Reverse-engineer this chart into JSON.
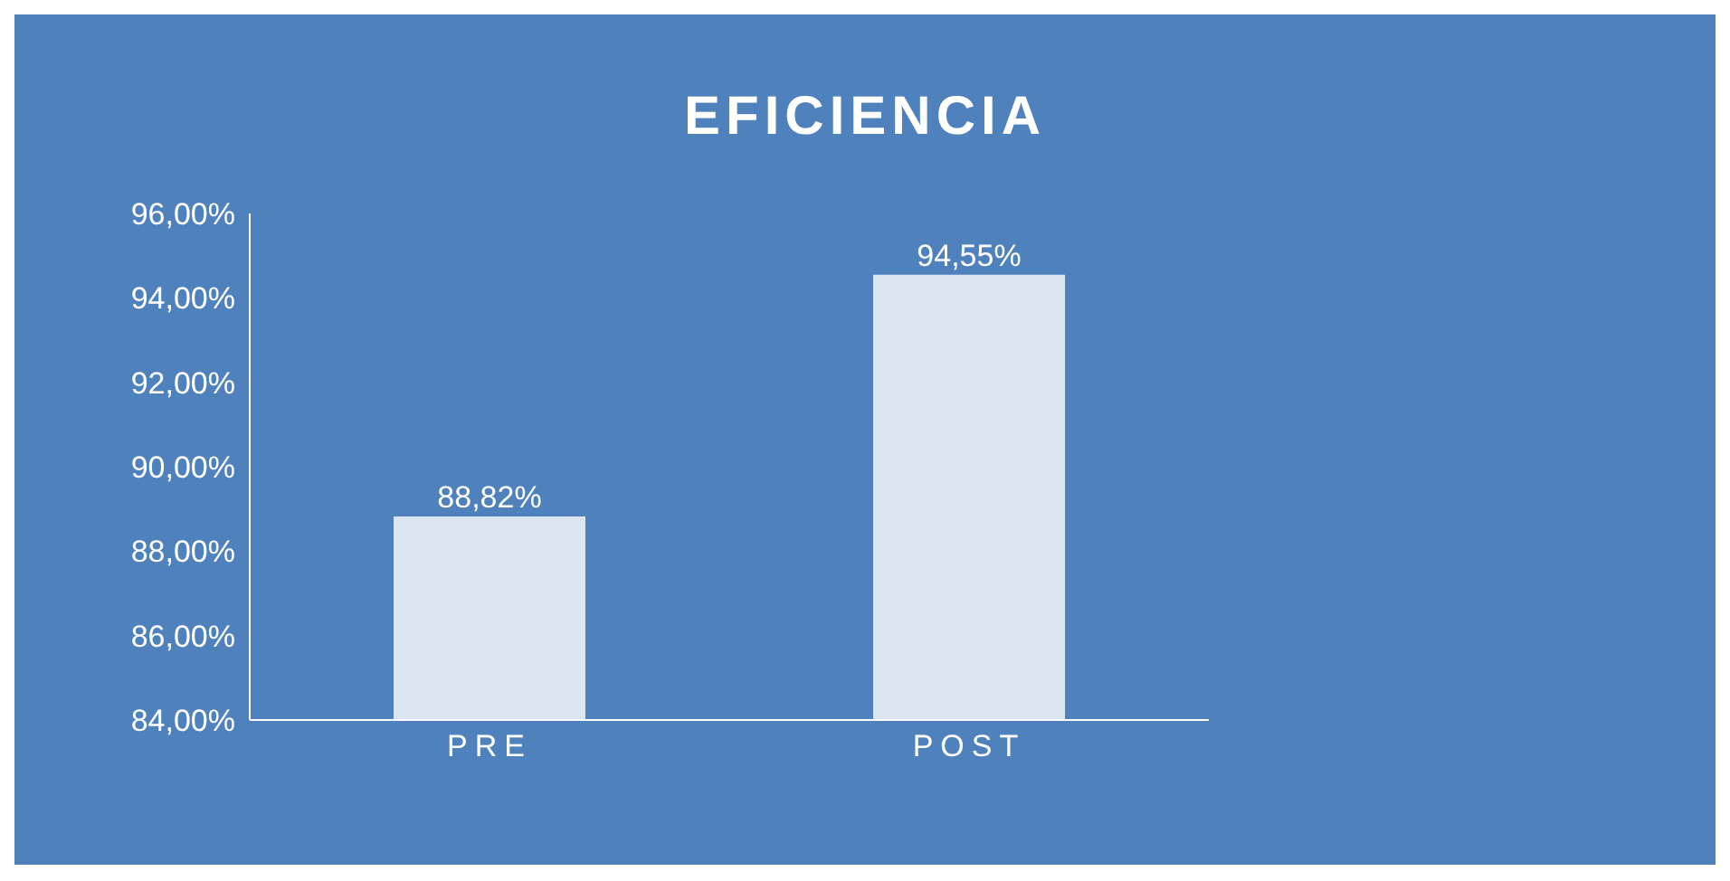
{
  "chart_data": {
    "type": "bar",
    "title": "EFICIENCIA",
    "categories": [
      "PRE",
      "POST"
    ],
    "values": [
      88.82,
      94.55
    ],
    "value_labels": [
      "88,82%",
      "94,55%"
    ],
    "color": "#dce6f2",
    "ylim": [
      84,
      96
    ],
    "yticks": [
      {
        "value": 84,
        "label": "84,00%"
      },
      {
        "value": 86,
        "label": "86,00%"
      },
      {
        "value": 88,
        "label": "88,00%"
      },
      {
        "value": 90,
        "label": "90,00%"
      },
      {
        "value": 92,
        "label": "92,00%"
      },
      {
        "value": 94,
        "label": "94,00%"
      },
      {
        "value": 96,
        "label": "96,00%"
      }
    ],
    "grid": false,
    "legend": false
  }
}
